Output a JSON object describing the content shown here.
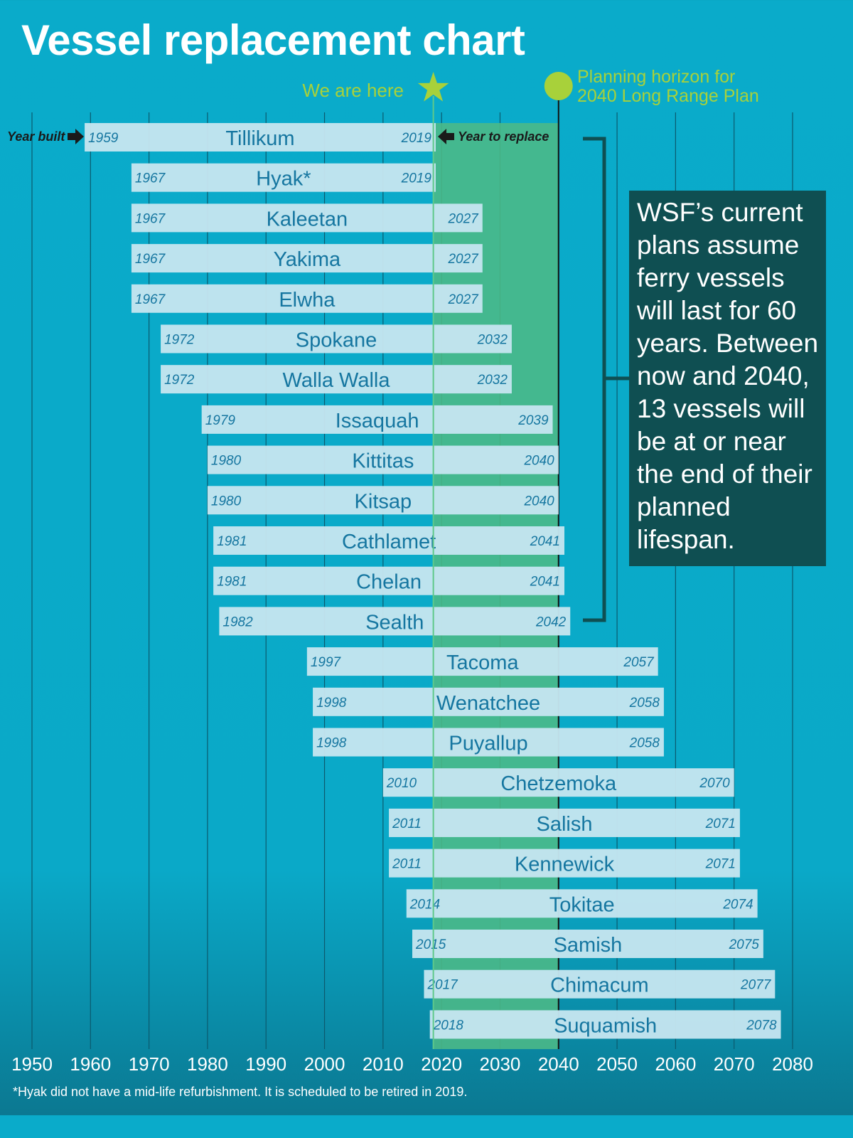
{
  "title": "Vessel replacement chart",
  "footnote": "*Hyak did not have a mid-life refurbishment. It is scheduled to be retired in 2019.",
  "note": "WSF’s current plans assume ferry vessels will last for 60 years. Between now and 2040, 13 vessels will be at or near the end of their planned lifespan.",
  "colors": {
    "bar": "#c5e5ef",
    "bar_text": "#1576a0",
    "band": "#4cba86",
    "accent": "#a8d13a",
    "note_bg": "#0f4f52"
  },
  "chart_data": {
    "type": "gantt",
    "xlim": [
      1950,
      2080
    ],
    "x_ticks": [
      1950,
      1960,
      1970,
      1980,
      1990,
      2000,
      2010,
      2020,
      2030,
      2040,
      2050,
      2060,
      2070,
      2080
    ],
    "grid": true,
    "annotations": {
      "we_are_here": {
        "label": "We are here",
        "year": 2018.6,
        "icon": "star-icon"
      },
      "planning_horizon": {
        "label_line1": "Planning horizon for",
        "label_line2": "2040 Long Range Plan",
        "year": 2040,
        "icon": "circle-icon"
      },
      "year_built_label": "Year built",
      "year_to_replace_label": "Year to replace",
      "highlighted_range": [
        2018.6,
        2040
      ]
    },
    "vessels": [
      {
        "name": "Tillikum",
        "built": 1959,
        "replace": 2019
      },
      {
        "name": "Hyak*",
        "built": 1967,
        "replace": 2019
      },
      {
        "name": "Kaleetan",
        "built": 1967,
        "replace": 2027
      },
      {
        "name": "Yakima",
        "built": 1967,
        "replace": 2027
      },
      {
        "name": "Elwha",
        "built": 1967,
        "replace": 2027
      },
      {
        "name": "Spokane",
        "built": 1972,
        "replace": 2032
      },
      {
        "name": "Walla Walla",
        "built": 1972,
        "replace": 2032
      },
      {
        "name": "Issaquah",
        "built": 1979,
        "replace": 2039
      },
      {
        "name": "Kittitas",
        "built": 1980,
        "replace": 2040
      },
      {
        "name": "Kitsap",
        "built": 1980,
        "replace": 2040
      },
      {
        "name": "Cathlamet",
        "built": 1981,
        "replace": 2041
      },
      {
        "name": "Chelan",
        "built": 1981,
        "replace": 2041
      },
      {
        "name": "Sealth",
        "built": 1982,
        "replace": 2042
      },
      {
        "name": "Tacoma",
        "built": 1997,
        "replace": 2057
      },
      {
        "name": "Wenatchee",
        "built": 1998,
        "replace": 2058
      },
      {
        "name": "Puyallup",
        "built": 1998,
        "replace": 2058
      },
      {
        "name": "Chetzemoka",
        "built": 2010,
        "replace": 2070
      },
      {
        "name": "Salish",
        "built": 2011,
        "replace": 2071
      },
      {
        "name": "Kennewick",
        "built": 2011,
        "replace": 2071
      },
      {
        "name": "Tokitae",
        "built": 2014,
        "replace": 2074
      },
      {
        "name": "Samish",
        "built": 2015,
        "replace": 2075
      },
      {
        "name": "Chimacum",
        "built": 2017,
        "replace": 2077
      },
      {
        "name": "Suquamish",
        "built": 2018,
        "replace": 2078
      }
    ]
  }
}
